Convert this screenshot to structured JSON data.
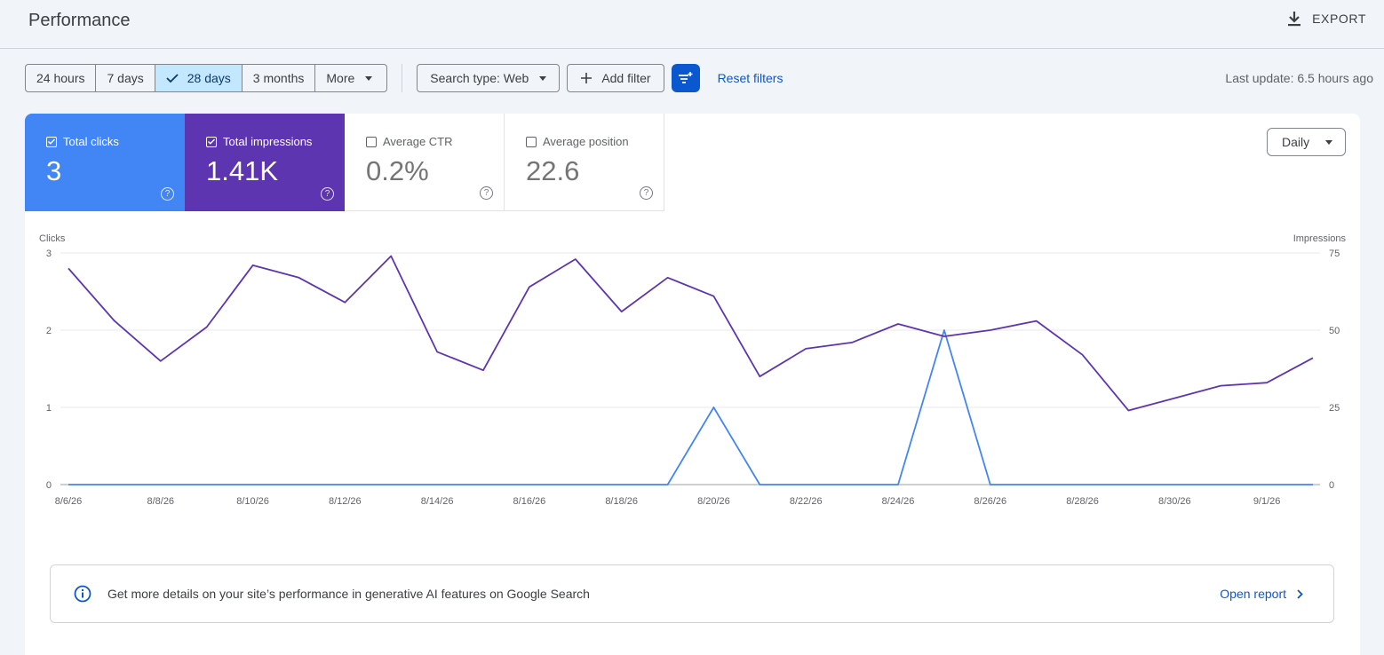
{
  "header": {
    "title": "Performance",
    "export_label": "EXPORT"
  },
  "toolbar": {
    "date_ranges": [
      "24 hours",
      "7 days",
      "28 days",
      "3 months"
    ],
    "active_range": "28 days",
    "more_label": "More",
    "search_type_label": "Search type: Web",
    "add_filter_label": "Add filter",
    "reset_label": "Reset filters",
    "last_update": "Last update: 6.5 hours ago"
  },
  "metrics": [
    {
      "label": "Total clicks",
      "value": "3",
      "checked": true
    },
    {
      "label": "Total impressions",
      "value": "1.41K",
      "checked": true
    },
    {
      "label": "Average CTR",
      "value": "0.2%",
      "checked": false
    },
    {
      "label": "Average position",
      "value": "22.6",
      "checked": false
    }
  ],
  "granularity": "Daily",
  "colors": {
    "clicks": "#4285f4",
    "impressions": "#5e35b1",
    "accent": "#0b57d0"
  },
  "chart_data": {
    "type": "line",
    "ylabel_left": "Clicks",
    "ylabel_right": "Impressions",
    "ylim_left": [
      0,
      3
    ],
    "ylim_right": [
      0,
      75
    ],
    "yticks_left": [
      "0",
      "1",
      "2",
      "3"
    ],
    "yticks_right": [
      "0",
      "25",
      "50",
      "75"
    ],
    "x": [
      "8/6/26",
      "8/7/26",
      "8/8/26",
      "8/9/26",
      "8/10/26",
      "8/11/26",
      "8/12/26",
      "8/13/26",
      "8/14/26",
      "8/15/26",
      "8/16/26",
      "8/17/26",
      "8/18/26",
      "8/19/26",
      "8/20/26",
      "8/21/26",
      "8/22/26",
      "8/23/26",
      "8/24/26",
      "8/25/26",
      "8/26/26",
      "8/27/26",
      "8/28/26",
      "8/29/26",
      "8/30/26",
      "8/31/26",
      "9/1/26",
      "9/2/26"
    ],
    "x_tick_labels": [
      "8/6/26",
      "8/8/26",
      "8/10/26",
      "8/12/26",
      "8/14/26",
      "8/16/26",
      "8/18/26",
      "8/20/26",
      "8/22/26",
      "8/24/26",
      "8/26/26",
      "8/28/26",
      "8/30/26",
      "9/1/26"
    ],
    "series": [
      {
        "name": "Clicks",
        "axis": "left",
        "values": [
          0,
          0,
          0,
          0,
          0,
          0,
          0,
          0,
          0,
          0,
          0,
          0,
          0,
          0,
          1,
          0,
          0,
          0,
          0,
          2,
          0,
          0,
          0,
          0,
          0,
          0,
          0,
          0
        ]
      },
      {
        "name": "Impressions",
        "axis": "right",
        "values": [
          70,
          53,
          40,
          51,
          71,
          67,
          59,
          74,
          43,
          37,
          64,
          73,
          56,
          67,
          61,
          35,
          44,
          46,
          52,
          48,
          50,
          53,
          42,
          24,
          28,
          32,
          33,
          41
        ]
      }
    ]
  },
  "banner": {
    "text": "Get more details on your site’s performance in generative AI features on Google Search",
    "link_label": "Open report"
  }
}
